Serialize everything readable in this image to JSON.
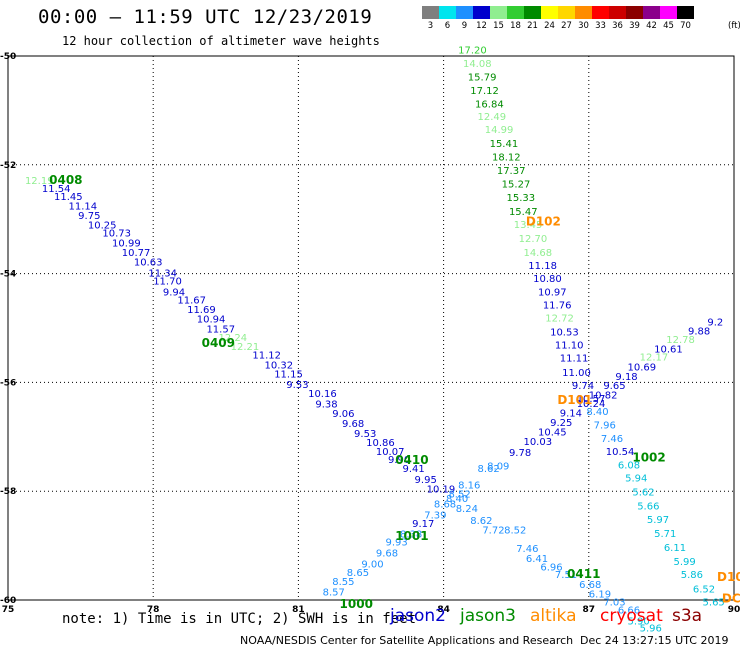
{
  "header": {
    "title": "00:00 — 11:59 UTC 12/23/2019",
    "subtitle": "12 hour collection of altimeter wave heights"
  },
  "legend": {
    "unit": "(ft)",
    "scale": [
      {
        "label": "3",
        "color": "#7f7f7f"
      },
      {
        "label": "6",
        "color": "#00e5ee"
      },
      {
        "label": "9",
        "color": "#1e90ff"
      },
      {
        "label": "12",
        "color": "#0000cd"
      },
      {
        "label": "15",
        "color": "#90ee90"
      },
      {
        "label": "18",
        "color": "#32cd32"
      },
      {
        "label": "21",
        "color": "#008b00"
      },
      {
        "label": "24",
        "color": "#ffff00"
      },
      {
        "label": "27",
        "color": "#ffd700"
      },
      {
        "label": "30",
        "color": "#ff8c00"
      },
      {
        "label": "33",
        "color": "#ff0000"
      },
      {
        "label": "36",
        "color": "#cd0000"
      },
      {
        "label": "39",
        "color": "#8b0000"
      },
      {
        "label": "42",
        "color": "#8b008b"
      },
      {
        "label": "45",
        "color": "#ff00ff"
      },
      {
        "label": "70",
        "color": "#000000"
      }
    ]
  },
  "map": {
    "lon_range": [
      75,
      90
    ],
    "lat_range": [
      -60,
      -50
    ],
    "x_ticks": [
      "75",
      "78",
      "81",
      "84",
      "87",
      "90"
    ],
    "y_ticks": [
      "-50",
      "-52",
      "-54",
      "-56",
      "-58",
      "-60"
    ]
  },
  "colors": {
    "jason2": "#0000cd",
    "jason3": "#008b00",
    "altika": "#ff8c00",
    "cryosat": "#ff0000",
    "s3a": "#8b0000",
    "light_green": "#90ee90",
    "mid_green": "#32cd32",
    "cyan": "#00bfd8",
    "blue": "#1e90ff"
  },
  "tracks": [
    {
      "name": "track-a",
      "labels": [
        {
          "v": "12.19",
          "c": "light_green",
          "lon": 75.35,
          "lat": -52.35
        },
        {
          "v": "11.54",
          "c": "jason2",
          "lon": 75.7,
          "lat": -52.5
        },
        {
          "v": "11.45",
          "c": "jason2",
          "lon": 75.95,
          "lat": -52.65
        },
        {
          "v": "11.14",
          "c": "jason2",
          "lon": 76.25,
          "lat": -52.82
        },
        {
          "v": "9.75",
          "c": "jason2",
          "lon": 76.45,
          "lat": -53.0
        },
        {
          "v": "10.25",
          "c": "jason2",
          "lon": 76.65,
          "lat": -53.17
        },
        {
          "v": "10.73",
          "c": "jason2",
          "lon": 76.95,
          "lat": -53.32
        },
        {
          "v": "10.99",
          "c": "jason2",
          "lon": 77.15,
          "lat": -53.5
        },
        {
          "v": "10.77",
          "c": "jason2",
          "lon": 77.35,
          "lat": -53.68
        },
        {
          "v": "10.63",
          "c": "jason2",
          "lon": 77.6,
          "lat": -53.85
        },
        {
          "v": "11.34",
          "c": "jason2",
          "lon": 77.9,
          "lat": -54.05
        },
        {
          "v": "11.70",
          "c": "jason2",
          "lon": 78.0,
          "lat": -54.2
        },
        {
          "v": "9.94",
          "c": "jason2",
          "lon": 78.2,
          "lat": -54.4
        },
        {
          "v": "11.67",
          "c": "jason2",
          "lon": 78.5,
          "lat": -54.55
        },
        {
          "v": "11.69",
          "c": "jason2",
          "lon": 78.7,
          "lat": -54.72
        },
        {
          "v": "10.94",
          "c": "jason2",
          "lon": 78.9,
          "lat": -54.9
        },
        {
          "v": "11.57",
          "c": "jason2",
          "lon": 79.1,
          "lat": -55.08
        },
        {
          "v": "12.24",
          "c": "light_green",
          "lon": 79.35,
          "lat": -55.24
        },
        {
          "v": "12.21",
          "c": "light_green",
          "lon": 79.6,
          "lat": -55.4
        },
        {
          "v": "11.12",
          "c": "jason2",
          "lon": 80.05,
          "lat": -55.56
        },
        {
          "v": "10.32",
          "c": "jason2",
          "lon": 80.3,
          "lat": -55.74
        },
        {
          "v": "11.15",
          "c": "jason2",
          "lon": 80.5,
          "lat": -55.91
        },
        {
          "v": "9.53",
          "c": "jason2",
          "lon": 80.75,
          "lat": -56.1
        },
        {
          "v": "10.16",
          "c": "jason2",
          "lon": 81.2,
          "lat": -56.27
        },
        {
          "v": "9.38",
          "c": "jason2",
          "lon": 81.35,
          "lat": -56.46
        },
        {
          "v": "9.06",
          "c": "jason2",
          "lon": 81.7,
          "lat": -56.64
        },
        {
          "v": "9.68",
          "c": "jason2",
          "lon": 81.9,
          "lat": -56.82
        },
        {
          "v": "9.53",
          "c": "jason2",
          "lon": 82.15,
          "lat": -57.0
        },
        {
          "v": "10.86",
          "c": "jason2",
          "lon": 82.4,
          "lat": -57.17
        },
        {
          "v": "10.07",
          "c": "jason2",
          "lon": 82.6,
          "lat": -57.33
        },
        {
          "v": "9.90",
          "c": "jason2",
          "lon": 82.85,
          "lat": -57.48
        },
        {
          "v": "9.41",
          "c": "jason2",
          "lon": 83.15,
          "lat": -57.65
        },
        {
          "v": "9.95",
          "c": "jason2",
          "lon": 83.4,
          "lat": -57.85
        },
        {
          "v": "10.19",
          "c": "jason2",
          "lon": 83.65,
          "lat": -58.02
        },
        {
          "v": "8.40",
          "c": "blue",
          "lon": 84.05,
          "lat": -58.2
        },
        {
          "v": "8.24",
          "c": "blue",
          "lon": 84.25,
          "lat": -58.38
        },
        {
          "v": "8.62",
          "c": "blue",
          "lon": 84.55,
          "lat": -58.6
        },
        {
          "v": "7.72",
          "c": "blue",
          "lon": 84.8,
          "lat": -58.78
        },
        {
          "v": "8.52",
          "c": "blue",
          "lon": 85.25,
          "lat": -58.78
        },
        {
          "v": "7.46",
          "c": "blue",
          "lon": 85.5,
          "lat": -59.12
        },
        {
          "v": "6.41",
          "c": "blue",
          "lon": 85.7,
          "lat": -59.3
        },
        {
          "v": "6.96",
          "c": "blue",
          "lon": 86.0,
          "lat": -59.46
        },
        {
          "v": "7.51",
          "c": "blue",
          "lon": 86.3,
          "lat": -59.6
        },
        {
          "v": "6.68",
          "c": "blue",
          "lon": 86.8,
          "lat": -59.78
        },
        {
          "v": "6.19",
          "c": "blue",
          "lon": 87.0,
          "lat": -59.95
        },
        {
          "v": "7.03",
          "c": "blue",
          "lon": 87.3,
          "lat": -60.1
        },
        {
          "v": "6.66",
          "c": "blue",
          "lon": 87.6,
          "lat": -60.25
        },
        {
          "v": "5.90",
          "c": "cyan",
          "lon": 87.8,
          "lat": -60.45
        },
        {
          "v": "5.96",
          "c": "cyan",
          "lon": 88.05,
          "lat": -60.58
        }
      ]
    },
    {
      "name": "track-b",
      "labels": [
        {
          "v": "17.20",
          "c": "mid_green",
          "lon": 84.3,
          "lat": -49.95
        },
        {
          "v": "14.08",
          "c": "light_green",
          "lon": 84.4,
          "lat": -50.2
        },
        {
          "v": "15.79",
          "c": "jason3",
          "lon": 84.5,
          "lat": -50.45
        },
        {
          "v": "17.12",
          "c": "jason3",
          "lon": 84.55,
          "lat": -50.7
        },
        {
          "v": "16.84",
          "c": "jason3",
          "lon": 84.65,
          "lat": -50.95
        },
        {
          "v": "12.49",
          "c": "light_green",
          "lon": 84.7,
          "lat": -51.18
        },
        {
          "v": "14.99",
          "c": "light_green",
          "lon": 84.85,
          "lat": -51.42
        },
        {
          "v": "15.41",
          "c": "jason3",
          "lon": 84.95,
          "lat": -51.67
        },
        {
          "v": "18.12",
          "c": "jason3",
          "lon": 85.0,
          "lat": -51.92
        },
        {
          "v": "17.37",
          "c": "jason3",
          "lon": 85.1,
          "lat": -52.17
        },
        {
          "v": "15.27",
          "c": "jason3",
          "lon": 85.2,
          "lat": -52.42
        },
        {
          "v": "15.33",
          "c": "jason3",
          "lon": 85.3,
          "lat": -52.67
        },
        {
          "v": "15.47",
          "c": "jason3",
          "lon": 85.35,
          "lat": -52.92
        },
        {
          "v": "13.45",
          "c": "light_green",
          "lon": 85.45,
          "lat": -53.16
        },
        {
          "v": "12.70",
          "c": "light_green",
          "lon": 85.55,
          "lat": -53.42
        },
        {
          "v": "14.68",
          "c": "light_green",
          "lon": 85.65,
          "lat": -53.68
        },
        {
          "v": "11.18",
          "c": "jason2",
          "lon": 85.75,
          "lat": -53.92
        },
        {
          "v": "10.80",
          "c": "jason2",
          "lon": 85.85,
          "lat": -54.15
        },
        {
          "v": "10.97",
          "c": "jason2",
          "lon": 85.95,
          "lat": -54.4
        },
        {
          "v": "11.76",
          "c": "jason2",
          "lon": 86.05,
          "lat": -54.64
        },
        {
          "v": "12.72",
          "c": "light_green",
          "lon": 86.1,
          "lat": -54.88
        },
        {
          "v": "10.53",
          "c": "jason2",
          "lon": 86.2,
          "lat": -55.14
        },
        {
          "v": "11.10",
          "c": "jason2",
          "lon": 86.3,
          "lat": -55.38
        },
        {
          "v": "11.11",
          "c": "jason2",
          "lon": 86.4,
          "lat": -55.62
        },
        {
          "v": "11.00",
          "c": "jason2",
          "lon": 86.45,
          "lat": -55.88
        },
        {
          "v": "9.74",
          "c": "jason2",
          "lon": 86.65,
          "lat": -56.12
        },
        {
          "v": "10.57",
          "c": "jason2",
          "lon": 86.75,
          "lat": -56.36
        },
        {
          "v": "8.40",
          "c": "blue",
          "lon": 86.95,
          "lat": -56.6
        },
        {
          "v": "7.96",
          "c": "blue",
          "lon": 87.1,
          "lat": -56.85
        },
        {
          "v": "7.46",
          "c": "blue",
          "lon": 87.25,
          "lat": -57.1
        },
        {
          "v": "10.54",
          "c": "jason2",
          "lon": 87.35,
          "lat": -57.33
        },
        {
          "v": "6.08",
          "c": "cyan",
          "lon": 87.6,
          "lat": -57.58
        },
        {
          "v": "5.94",
          "c": "cyan",
          "lon": 87.75,
          "lat": -57.82
        },
        {
          "v": "5.62",
          "c": "cyan",
          "lon": 87.9,
          "lat": -58.08
        },
        {
          "v": "5.66",
          "c": "cyan",
          "lon": 88.0,
          "lat": -58.34
        },
        {
          "v": "5.97",
          "c": "cyan",
          "lon": 88.2,
          "lat": -58.58
        },
        {
          "v": "5.71",
          "c": "cyan",
          "lon": 88.35,
          "lat": -58.84
        },
        {
          "v": "6.11",
          "c": "cyan",
          "lon": 88.55,
          "lat": -59.1
        },
        {
          "v": "5.99",
          "c": "cyan",
          "lon": 88.75,
          "lat": -59.36
        },
        {
          "v": "5.86",
          "c": "cyan",
          "lon": 88.9,
          "lat": -59.6
        },
        {
          "v": "6.52",
          "c": "cyan",
          "lon": 89.15,
          "lat": -59.86
        },
        {
          "v": "5.65",
          "c": "cyan",
          "lon": 89.35,
          "lat": -60.1
        }
      ]
    },
    {
      "name": "track-c",
      "labels": [
        {
          "v": "8.57",
          "c": "blue",
          "lon": 81.5,
          "lat": -59.92
        },
        {
          "v": "8.55",
          "c": "blue",
          "lon": 81.7,
          "lat": -59.72
        },
        {
          "v": "8.65",
          "c": "blue",
          "lon": 82.0,
          "lat": -59.56
        },
        {
          "v": "9.00",
          "c": "blue",
          "lon": 82.3,
          "lat": -59.4
        },
        {
          "v": "9.68",
          "c": "blue",
          "lon": 82.6,
          "lat": -59.2
        },
        {
          "v": "9.93",
          "c": "blue",
          "lon": 82.8,
          "lat": -59.0
        },
        {
          "v": "8.38",
          "c": "blue",
          "lon": 83.1,
          "lat": -58.85
        },
        {
          "v": "9.17",
          "c": "jason2",
          "lon": 83.35,
          "lat": -58.66
        },
        {
          "v": "7.39",
          "c": "blue",
          "lon": 83.6,
          "lat": -58.5
        },
        {
          "v": "8.68",
          "c": "blue",
          "lon": 83.8,
          "lat": -58.3
        },
        {
          "v": "8.52",
          "c": "blue",
          "lon": 84.1,
          "lat": -58.12
        },
        {
          "v": "8.16",
          "c": "blue",
          "lon": 84.3,
          "lat": -57.95
        },
        {
          "v": "8.62",
          "c": "blue",
          "lon": 84.7,
          "lat": -57.65
        },
        {
          "v": "8.09",
          "c": "blue",
          "lon": 84.9,
          "lat": -57.6
        },
        {
          "v": "9.78",
          "c": "jason2",
          "lon": 85.35,
          "lat": -57.35
        },
        {
          "v": "10.03",
          "c": "jason2",
          "lon": 85.65,
          "lat": -57.15
        },
        {
          "v": "10.45",
          "c": "jason2",
          "lon": 85.95,
          "lat": -56.98
        },
        {
          "v": "9.25",
          "c": "jason2",
          "lon": 86.2,
          "lat": -56.8
        },
        {
          "v": "9.14",
          "c": "jason2",
          "lon": 86.4,
          "lat": -56.63
        },
        {
          "v": "10.24",
          "c": "jason2",
          "lon": 86.75,
          "lat": -56.45
        },
        {
          "v": "10.82",
          "c": "jason2",
          "lon": 87.0,
          "lat": -56.3
        },
        {
          "v": "9.65",
          "c": "jason2",
          "lon": 87.3,
          "lat": -56.12
        },
        {
          "v": "9.18",
          "c": "jason2",
          "lon": 87.55,
          "lat": -55.96
        },
        {
          "v": "10.69",
          "c": "jason2",
          "lon": 87.8,
          "lat": -55.78
        },
        {
          "v": "12.17",
          "c": "light_green",
          "lon": 88.05,
          "lat": -55.6
        },
        {
          "v": "10.61",
          "c": "jason2",
          "lon": 88.35,
          "lat": -55.45
        },
        {
          "v": "12.78",
          "c": "light_green",
          "lon": 88.6,
          "lat": -55.28
        },
        {
          "v": "9.88",
          "c": "jason2",
          "lon": 89.05,
          "lat": -55.12
        },
        {
          "v": "9.2",
          "c": "jason2",
          "lon": 89.45,
          "lat": -54.95
        }
      ]
    }
  ],
  "pass_labels": [
    {
      "v": "0408",
      "c": "jason3",
      "lon": 75.85,
      "lat": -52.35
    },
    {
      "v": "0409",
      "c": "jason3",
      "lon": 79.0,
      "lat": -55.35
    },
    {
      "v": "0410",
      "c": "jason3",
      "lon": 83.0,
      "lat": -57.5
    },
    {
      "v": "D102",
      "c": "altika",
      "lon": 85.7,
      "lat": -53.12
    },
    {
      "v": "D101",
      "c": "altika",
      "lon": 86.35,
      "lat": -56.4
    },
    {
      "v": "1002",
      "c": "jason3",
      "lon": 87.9,
      "lat": -57.45
    },
    {
      "v": "0411",
      "c": "jason3",
      "lon": 86.55,
      "lat": -59.6
    },
    {
      "v": "1001",
      "c": "jason3",
      "lon": 83.0,
      "lat": -58.9
    },
    {
      "v": "1000",
      "c": "jason3",
      "lon": 81.85,
      "lat": -60.15
    },
    {
      "v": "D10",
      "c": "altika",
      "lon": 89.65,
      "lat": -59.65
    },
    {
      "v": "DC",
      "c": "altika",
      "lon": 89.75,
      "lat": -60.05
    }
  ],
  "footer": {
    "note": "note: 1) Time is in UTC; 2) SWH is in feet",
    "satellites": [
      {
        "label": "jason2",
        "color": "#0000cd"
      },
      {
        "label": "jason3",
        "color": "#008b00"
      },
      {
        "label": "altika",
        "color": "#ff8c00"
      },
      {
        "label": "cryosat",
        "color": "#ff0000"
      },
      {
        "label": "s3a",
        "color": "#8b0000"
      }
    ],
    "credit": "NOAA/NESDIS Center for Satellite Applications and Research",
    "timestamp": "Dec 24 13:27:15 UTC 2019"
  }
}
